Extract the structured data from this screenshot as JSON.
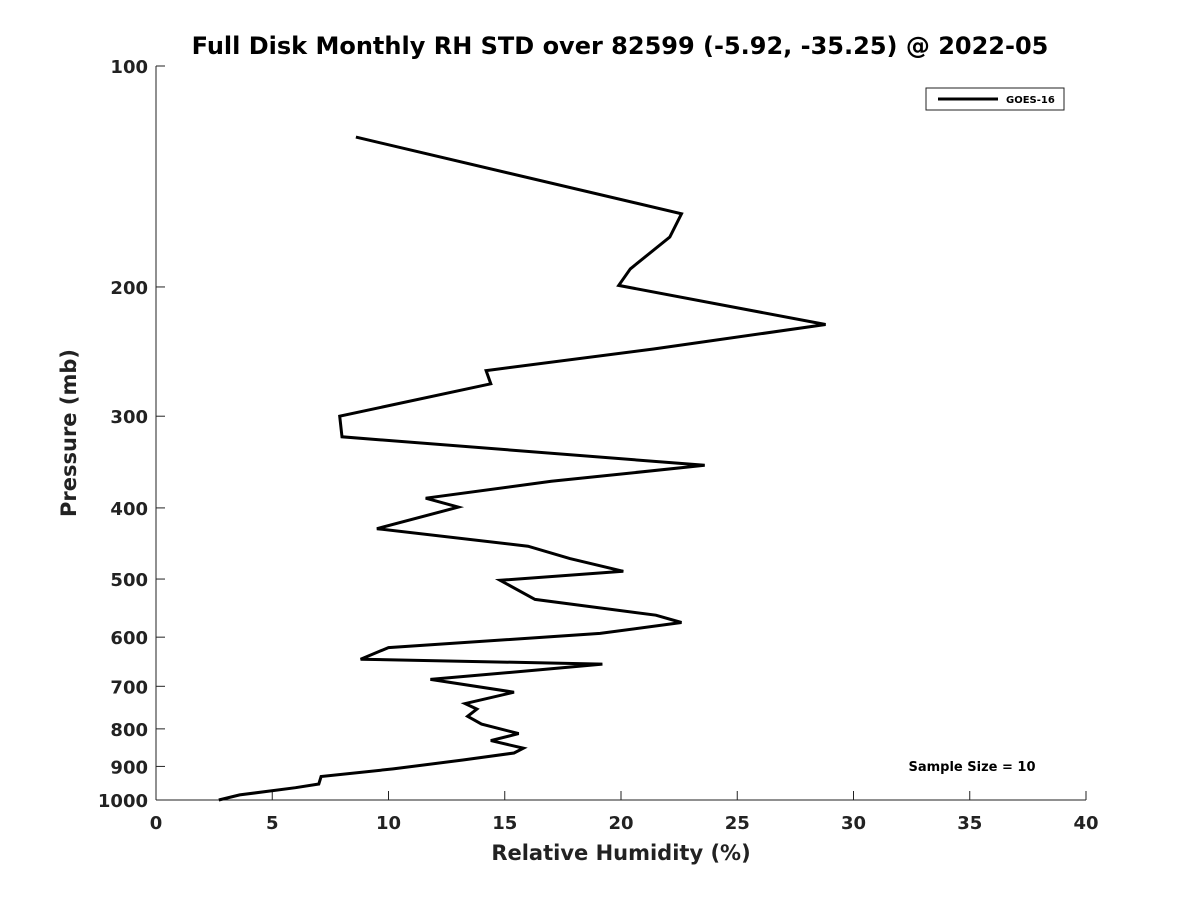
{
  "chart_data": {
    "type": "line",
    "title": "Full Disk Monthly RH STD over 82599 (-5.92, -35.25) @ 2022-05",
    "xlabel": "Relative Humidity (%)",
    "ylabel": "Pressure (mb)",
    "xlim": [
      0,
      40
    ],
    "ylim": [
      1000,
      100
    ],
    "y_scale": "log",
    "y_inverted": true,
    "x_ticks": [
      0,
      5,
      10,
      15,
      20,
      25,
      30,
      35,
      40
    ],
    "y_ticks": [
      100,
      200,
      300,
      400,
      500,
      600,
      700,
      800,
      900,
      1000
    ],
    "grid": false,
    "legend_position": "top-right",
    "series": [
      {
        "name": "GOES-16",
        "color": "#000000",
        "x": [
          8.6,
          22.6,
          22.1,
          20.4,
          19.9,
          28.8,
          21.4,
          14.2,
          14.4,
          7.9,
          8.0,
          23.6,
          17.0,
          11.6,
          13.0,
          9.5,
          16.0,
          17.8,
          20.1,
          14.8,
          16.3,
          21.5,
          22.6,
          19.1,
          10.0,
          8.8,
          19.2,
          16.4,
          11.8,
          15.4,
          13.3,
          13.8,
          13.4,
          14.0,
          15.6,
          14.4,
          15.8,
          15.4,
          13.2,
          10.2,
          7.1,
          7.0,
          6.0,
          3.6,
          2.7
        ],
        "y": [
          125,
          159,
          171,
          189,
          199,
          225,
          243,
          260,
          271,
          300,
          320,
          350,
          368,
          388,
          399,
          427,
          451,
          469,
          488,
          502,
          533,
          560,
          573,
          593,
          620,
          643,
          653,
          665,
          685,
          713,
          739,
          752,
          769,
          788,
          812,
          830,
          850,
          863,
          882,
          907,
          929,
          951,
          962,
          984,
          1000
        ]
      }
    ],
    "annotation": "Sample Size = 10"
  }
}
